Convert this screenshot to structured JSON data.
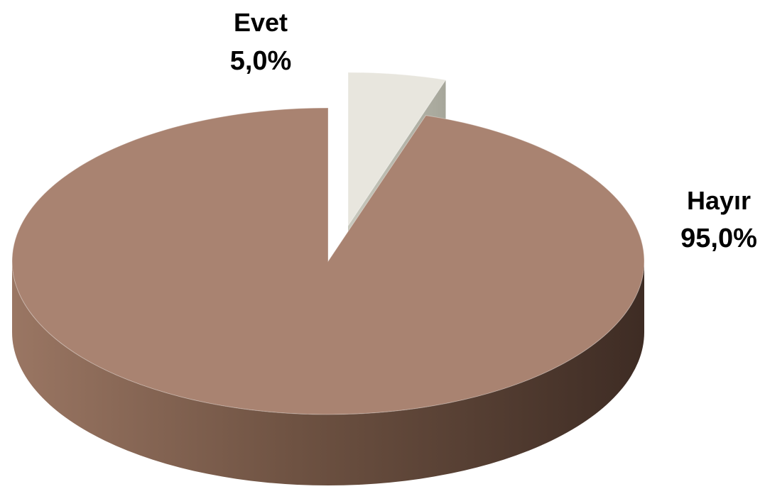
{
  "chart_data": {
    "type": "pie",
    "style": "3d-exploded",
    "categories": [
      "Evet",
      "Hayır"
    ],
    "values": [
      5.0,
      95.0
    ],
    "value_labels": [
      "5,0%",
      "95,0%"
    ],
    "unit": "%",
    "exploded": [
      "Evet"
    ],
    "legend": "none",
    "slices": [
      {
        "label": "Evet",
        "value": 5.0,
        "value_label": "5,0%",
        "color": "#E8E6DE",
        "side_color": "#B9B9AE"
      },
      {
        "label": "Hayır",
        "value": 95.0,
        "value_label": "95,0%",
        "color": "#A98371",
        "side_color": "#6F5244"
      }
    ]
  }
}
